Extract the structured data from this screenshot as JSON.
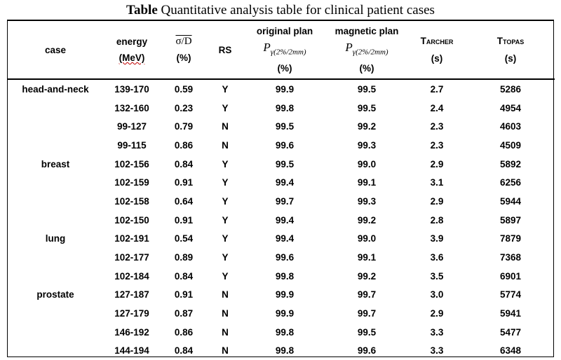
{
  "caption": {
    "bold": "Table",
    "text": "Quantitative analysis table for clinical patient cases"
  },
  "headers": {
    "case": "case",
    "energy_1": "energy",
    "energy_2": "(MeV)",
    "sd_1": "σ/D",
    "sd_2": "(%)",
    "rs": "RS",
    "orig_1": "original plan",
    "orig_p": "P",
    "orig_sub": "γ(2%/2mm)",
    "orig_3": "(%)",
    "mag_1": "magnetic plan",
    "mag_p": "P",
    "mag_sub": "γ(2%/2mm)",
    "mag_3": "(%)",
    "tarch_T": "T",
    "tarch_sub": "ARCHER",
    "tarch_unit": "(s)",
    "ttop_T": "T",
    "ttop_sub": "TOPAS",
    "ttop_unit": "(s)"
  },
  "rows": [
    {
      "case": "head-and-neck",
      "energy": "139-170",
      "sd": "0.59",
      "rs": "Y",
      "orig": "99.9",
      "mag": "99.5",
      "tarcher": "2.7",
      "ttopas": "5286"
    },
    {
      "case": "",
      "energy": "132-160",
      "sd": "0.23",
      "rs": "Y",
      "orig": "99.8",
      "mag": "99.5",
      "tarcher": "2.4",
      "ttopas": "4954"
    },
    {
      "case": "",
      "energy": "99-127",
      "sd": "0.79",
      "rs": "N",
      "orig": "99.5",
      "mag": "99.2",
      "tarcher": "2.3",
      "ttopas": "4603"
    },
    {
      "case": "",
      "energy": "99-115",
      "sd": "0.86",
      "rs": "N",
      "orig": "99.6",
      "mag": "99.3",
      "tarcher": "2.3",
      "ttopas": "4509"
    },
    {
      "case": "breast",
      "energy": "102-156",
      "sd": "0.84",
      "rs": "Y",
      "orig": "99.5",
      "mag": "99.0",
      "tarcher": "2.9",
      "ttopas": "5892"
    },
    {
      "case": "",
      "energy": "102-159",
      "sd": "0.91",
      "rs": "Y",
      "orig": "99.4",
      "mag": "99.1",
      "tarcher": "3.1",
      "ttopas": "6256"
    },
    {
      "case": "",
      "energy": "102-158",
      "sd": "0.64",
      "rs": "Y",
      "orig": "99.7",
      "mag": "99.3",
      "tarcher": "2.9",
      "ttopas": "5944"
    },
    {
      "case": "",
      "energy": "102-150",
      "sd": "0.91",
      "rs": "Y",
      "orig": "99.4",
      "mag": "99.2",
      "tarcher": "2.8",
      "ttopas": "5897"
    },
    {
      "case": "lung",
      "energy": "102-191",
      "sd": "0.54",
      "rs": "Y",
      "orig": "99.4",
      "mag": "99.0",
      "tarcher": "3.9",
      "ttopas": "7879"
    },
    {
      "case": "",
      "energy": "102-177",
      "sd": "0.89",
      "rs": "Y",
      "orig": "99.6",
      "mag": "99.1",
      "tarcher": "3.6",
      "ttopas": "7368"
    },
    {
      "case": "",
      "energy": "102-184",
      "sd": "0.84",
      "rs": "Y",
      "orig": "99.8",
      "mag": "99.2",
      "tarcher": "3.5",
      "ttopas": "6901"
    },
    {
      "case": "prostate",
      "energy": "127-187",
      "sd": "0.91",
      "rs": "N",
      "orig": "99.9",
      "mag": "99.7",
      "tarcher": "3.0",
      "ttopas": "5774"
    },
    {
      "case": "",
      "energy": "127-179",
      "sd": "0.87",
      "rs": "N",
      "orig": "99.9",
      "mag": "99.7",
      "tarcher": "2.9",
      "ttopas": "5941"
    },
    {
      "case": "",
      "energy": "146-192",
      "sd": "0.86",
      "rs": "N",
      "orig": "99.8",
      "mag": "99.5",
      "tarcher": "3.3",
      "ttopas": "5477"
    },
    {
      "case": "",
      "energy": "144-194",
      "sd": "0.84",
      "rs": "N",
      "orig": "99.8",
      "mag": "99.6",
      "tarcher": "3.3",
      "ttopas": "6348"
    }
  ]
}
